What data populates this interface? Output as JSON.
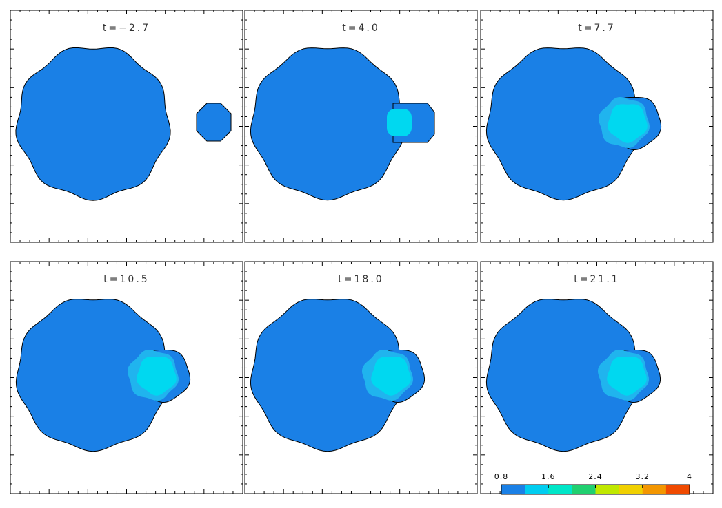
{
  "panels": [
    {
      "title": "t=−2.7"
    },
    {
      "title": "t=4.0"
    },
    {
      "title": "t=7.7"
    },
    {
      "title": "t=10.5"
    },
    {
      "title": "t=18.0"
    },
    {
      "title": "t=21.1"
    }
  ],
  "colorbar": {
    "ticks": [
      0.8,
      1.6,
      2.4,
      3.2,
      4
    ],
    "colors": [
      "#1a80e6",
      "#00cdf0",
      "#00e6c8",
      "#20d070",
      "#c0e800",
      "#f0d000",
      "#f39600",
      "#f04a00"
    ]
  }
}
